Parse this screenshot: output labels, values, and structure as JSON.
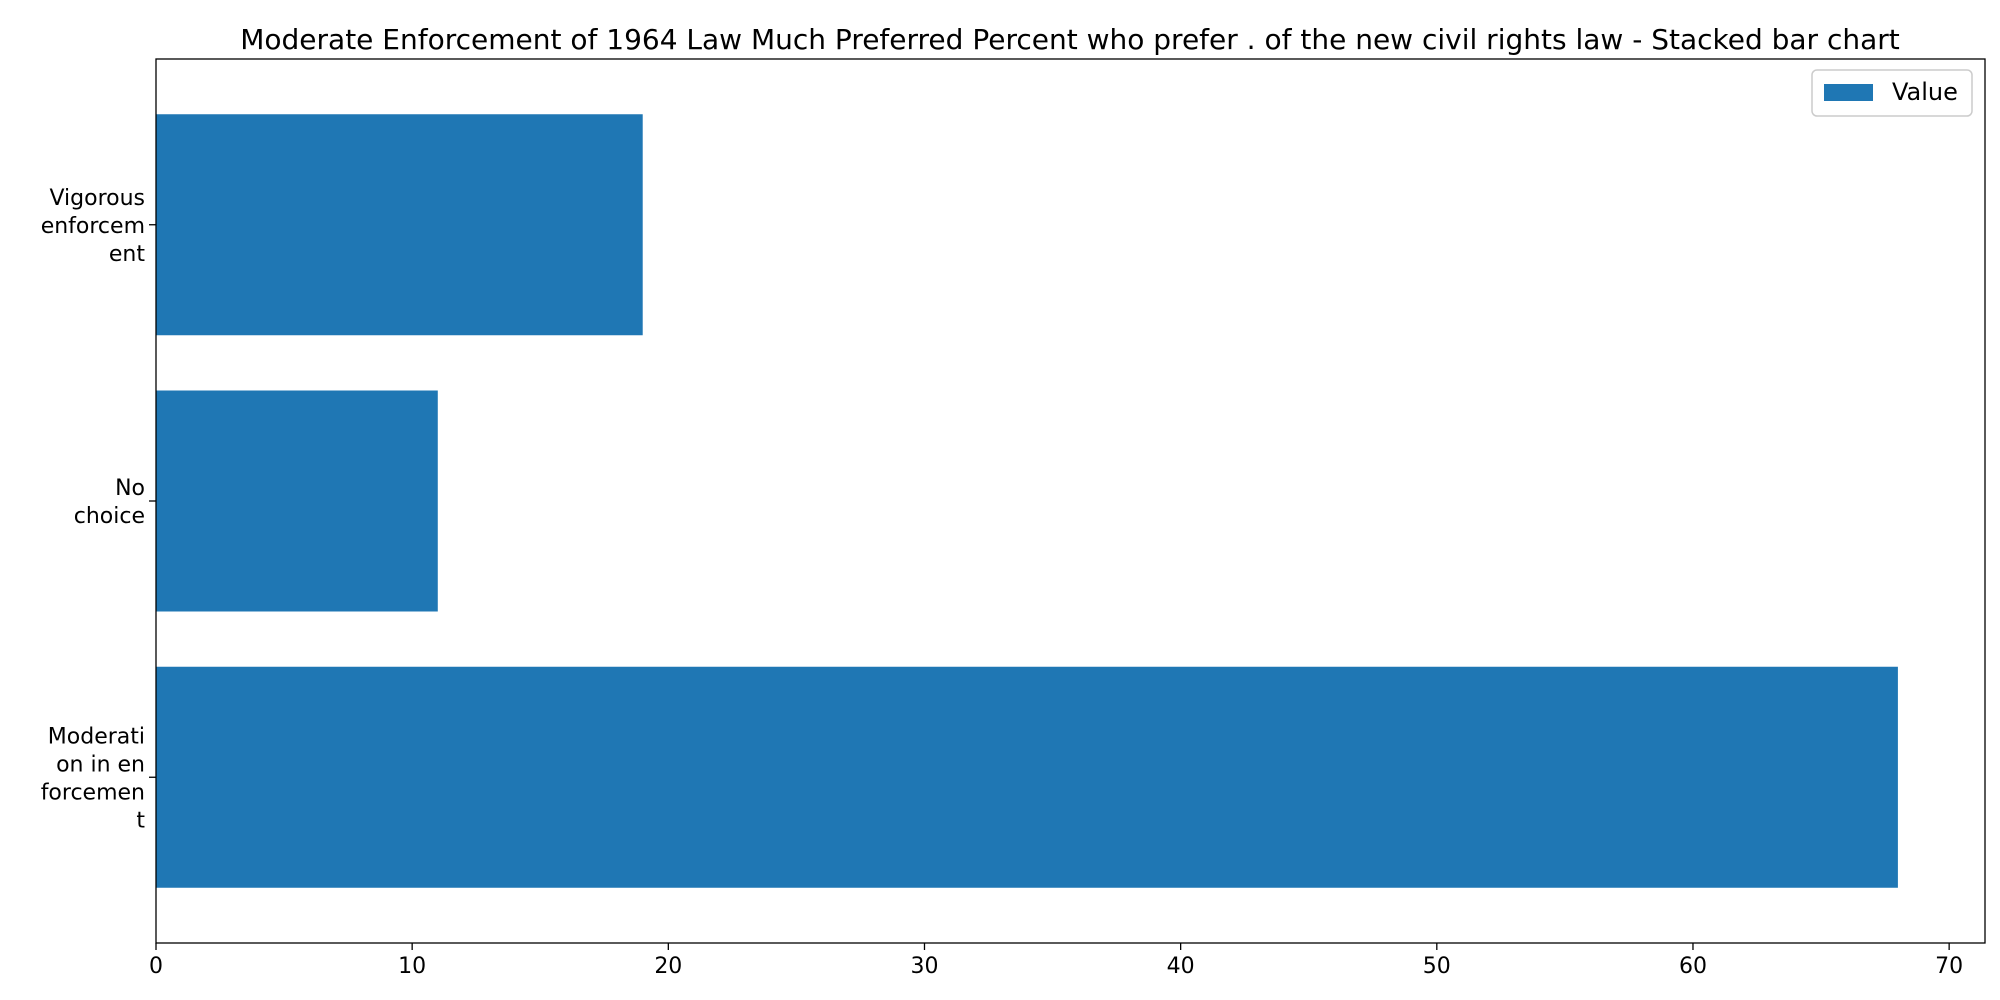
{
  "chart_data": {
    "type": "bar",
    "orientation": "horizontal",
    "title": "Moderate Enforcement of 1964 Law Much Preferred Percent who prefer . of the new civil rights law  - Stacked bar chart",
    "xlabel": "",
    "ylabel": "",
    "categories": [
      "Moderation in enforcement",
      "No choice",
      "Vigorous enforcement"
    ],
    "category_tick_lines": [
      [
        "Moderati",
        "on in en",
        "forcemen",
        "t"
      ],
      [
        "No",
        "choice"
      ],
      [
        "Vigorous",
        "enforcem",
        "ent"
      ]
    ],
    "series": [
      {
        "name": "Value",
        "values": [
          68,
          11,
          19
        ],
        "color": "#1f77b4"
      }
    ],
    "xlim": [
      0,
      71.4
    ],
    "xticks": [
      0,
      10,
      20,
      30,
      40,
      50,
      60,
      70
    ],
    "grid": false,
    "legend": "top-right"
  }
}
